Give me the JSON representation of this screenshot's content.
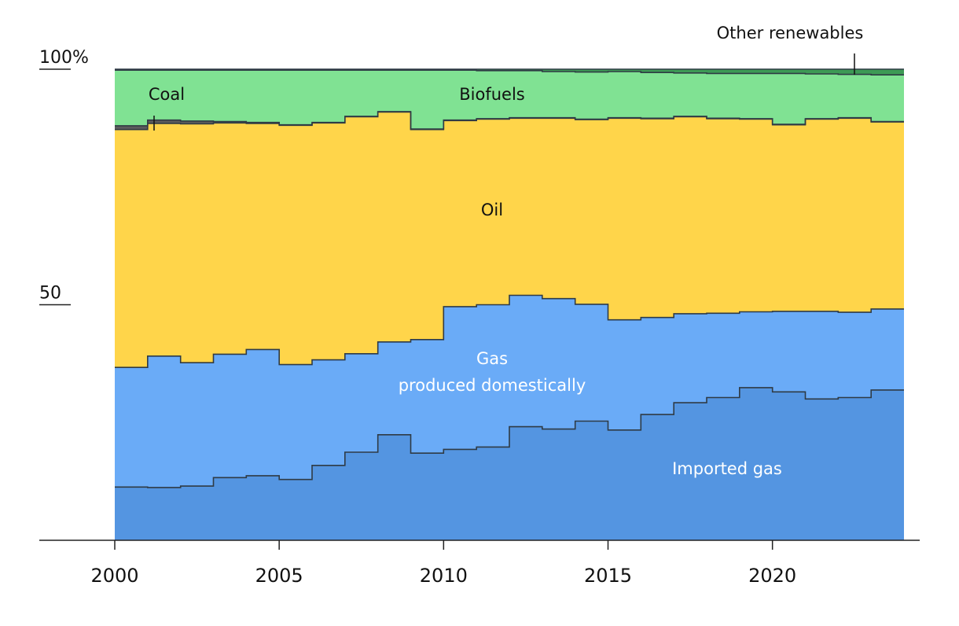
{
  "chart_data": {
    "type": "area",
    "stacked": true,
    "step": true,
    "x": [
      2000,
      2001,
      2002,
      2003,
      2004,
      2005,
      2006,
      2007,
      2008,
      2009,
      2010,
      2011,
      2012,
      2013,
      2014,
      2015,
      2016,
      2017,
      2018,
      2019,
      2020,
      2021,
      2022,
      2023
    ],
    "series": [
      {
        "name": "Imported gas",
        "color": "#5495e1",
        "values": [
          11.3,
          11.2,
          11.5,
          13.3,
          13.7,
          12.9,
          15.9,
          18.7,
          22.4,
          18.5,
          19.3,
          19.8,
          24.1,
          23.6,
          25.3,
          23.4,
          26.7,
          29.2,
          30.3,
          32.4,
          31.5,
          30.0,
          30.3,
          31.9
        ]
      },
      {
        "name": "Gas produced domestically",
        "color": "#6aabf7",
        "values": [
          25.4,
          27.9,
          26.2,
          26.2,
          26.8,
          24.4,
          22.4,
          20.9,
          19.7,
          24.1,
          30.3,
          30.2,
          27.9,
          27.7,
          24.8,
          23.4,
          20.6,
          18.9,
          17.9,
          16.1,
          17.1,
          18.6,
          18.1,
          17.2
        ]
      },
      {
        "name": "Oil",
        "color": "#ffd54a",
        "values": [
          50.5,
          49.4,
          50.7,
          49.1,
          48.0,
          50.8,
          50.3,
          50.3,
          48.8,
          44.6,
          39.5,
          39.4,
          37.6,
          38.3,
          39.2,
          42.8,
          42.2,
          41.8,
          41.3,
          40.9,
          39.6,
          40.8,
          41.2,
          39.7
        ]
      },
      {
        "name": "Coal",
        "color": "#5c5c5c",
        "values": [
          0.8,
          0.7,
          0.6,
          0.3,
          0.2,
          0.1,
          0.1,
          0.1,
          0.1,
          0.1,
          0.1,
          0.1,
          0.1,
          0.1,
          0.1,
          0.1,
          0.1,
          0.1,
          0.1,
          0.1,
          0.1,
          0.1,
          0.1,
          0.1
        ]
      },
      {
        "name": "Biofuels",
        "color": "#80e293",
        "values": [
          11.8,
          10.6,
          10.8,
          10.9,
          11.1,
          11.6,
          11.1,
          9.8,
          8.8,
          12.5,
          10.6,
          10.2,
          10.0,
          9.8,
          10.0,
          9.8,
          9.7,
          9.2,
          9.5,
          9.6,
          10.8,
          9.5,
          9.2,
          9.9
        ]
      },
      {
        "name": "Other renewables",
        "color": "#3d9a55",
        "values": [
          0.2,
          0.2,
          0.2,
          0.2,
          0.2,
          0.2,
          0.2,
          0.2,
          0.2,
          0.2,
          0.2,
          0.3,
          0.3,
          0.5,
          0.6,
          0.5,
          0.7,
          0.8,
          0.9,
          0.9,
          0.9,
          1.0,
          1.1,
          1.2
        ]
      }
    ],
    "ylim": [
      0,
      100
    ],
    "y_ticks": [
      {
        "value": 100,
        "label": "100%"
      },
      {
        "value": 50,
        "label": "50"
      }
    ],
    "x_ticks": [
      2000,
      2005,
      2010,
      2015,
      2020
    ],
    "annotations": {
      "imported_gas": "Imported gas",
      "gas_domestic_line1": "Gas",
      "gas_domestic_line2": "produced domestically",
      "oil": "Oil",
      "coal": "Coal",
      "biofuels": "Biofuels",
      "other_renewables": "Other renewables"
    },
    "grid": false
  }
}
